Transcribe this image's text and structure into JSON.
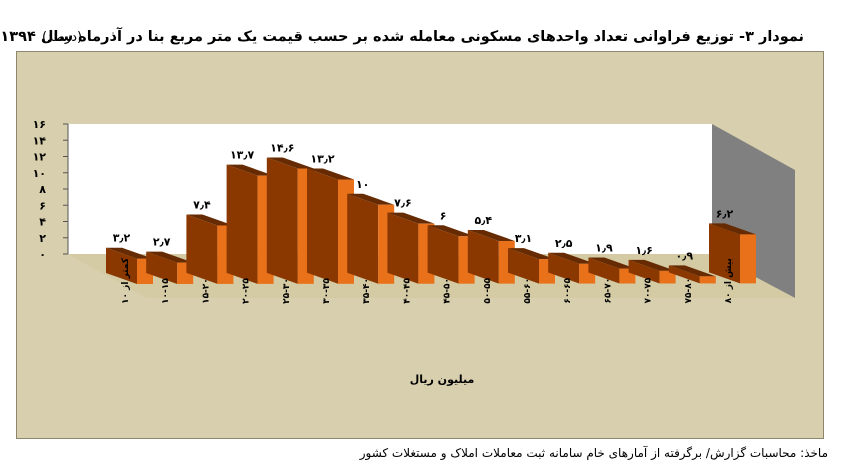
{
  "title": "نمودار ۳- توزیع فراوانی تعداد واحدهای مسکونی معامله شده بر حسب قیمت یک متر مربع بنا در آذرماه سال ۱۳۹۴",
  "unit_label": "(درصد)",
  "source": "ماخذ: محاسبات گزارش/ برگرفته از آمارهای خام سامانه ثبت معاملات املاک و مستغلات کشور",
  "colors": {
    "front": "#e8711a",
    "side": "#8a3800",
    "top": "#662b03",
    "wall": "#ffffff",
    "sidewall": "#808080",
    "floor": "#d4cba4"
  },
  "chart_data": {
    "type": "bar",
    "title": "نمودار ۳- توزیع فراوانی تعداد واحدهای مسکونی معامله شده بر حسب قیمت یک متر مربع بنا در آذرماه سال ۱۳۹۴",
    "xlabel": "میلیون ریال",
    "ylabel": "",
    "unit": "(درصد)",
    "ylim": [
      0,
      16
    ],
    "yticks": [
      0,
      2,
      4,
      6,
      8,
      10,
      12,
      14,
      16
    ],
    "ytick_labels": [
      "۰",
      "۲",
      "۴",
      "۶",
      "۸",
      "۱۰",
      "۱۲",
      "۱۴",
      "۱۶"
    ],
    "categories": [
      "کمتر از ۱۰",
      "۱۰-۱۵",
      "۱۵-۲۰",
      "۲۰-۲۵",
      "۲۵-۳۰",
      "۳۰-۳۵",
      "۳۵-۴۰",
      "۴۰-۴۵",
      "۴۵-۵۰",
      "۵۰-۵۵",
      "۵۵-۶۰",
      "۶۰-۶۵",
      "۶۵-۷۰",
      "۷۰-۷۵",
      "۷۵-۸۰",
      "بیش از ۸۰"
    ],
    "values": [
      3.2,
      2.7,
      7.4,
      13.7,
      14.6,
      13.2,
      10,
      7.6,
      6,
      5.4,
      3.1,
      2.5,
      1.9,
      1.6,
      0.9,
      6.2
    ],
    "data_labels": [
      "۳٫۲",
      "۲٫۷",
      "۷٫۴",
      "۱۳٫۷",
      "۱۴٫۶",
      "۱۳٫۲",
      "۱۰",
      "۷٫۶",
      "۶",
      "۵٫۴",
      "۳٫۱",
      "۲٫۵",
      "۱٫۹",
      "۱٫۶",
      "۰٫۹",
      "۶٫۲"
    ],
    "grid": false,
    "legend": "none"
  }
}
